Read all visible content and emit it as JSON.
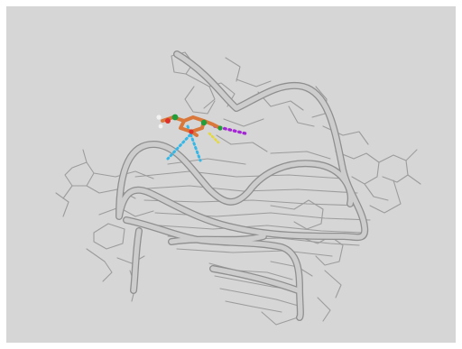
{
  "viewer": {
    "background_color": "#d6d6d6",
    "frame_color": "#ffffff",
    "backbone_color": "#cdcdcd",
    "backbone_edge_color": "#8f8f8f",
    "base_line_color": "#9c9c9c",
    "ligand": {
      "carbon_color": "#d9783a",
      "nitrogen_color": "#1f9e3a",
      "oxygen_color": "#e0302a",
      "hydrogen_color": "#f2f2f2"
    },
    "interactions": [
      {
        "kind": "hydrogen-bond",
        "color": "#35b8e8"
      },
      {
        "kind": "hydrogen-bond",
        "color": "#35b8e8"
      },
      {
        "kind": "pi-stacking",
        "color": "#a526d6"
      },
      {
        "kind": "halogen-or-contact",
        "color": "#e6d93a"
      }
    ]
  }
}
